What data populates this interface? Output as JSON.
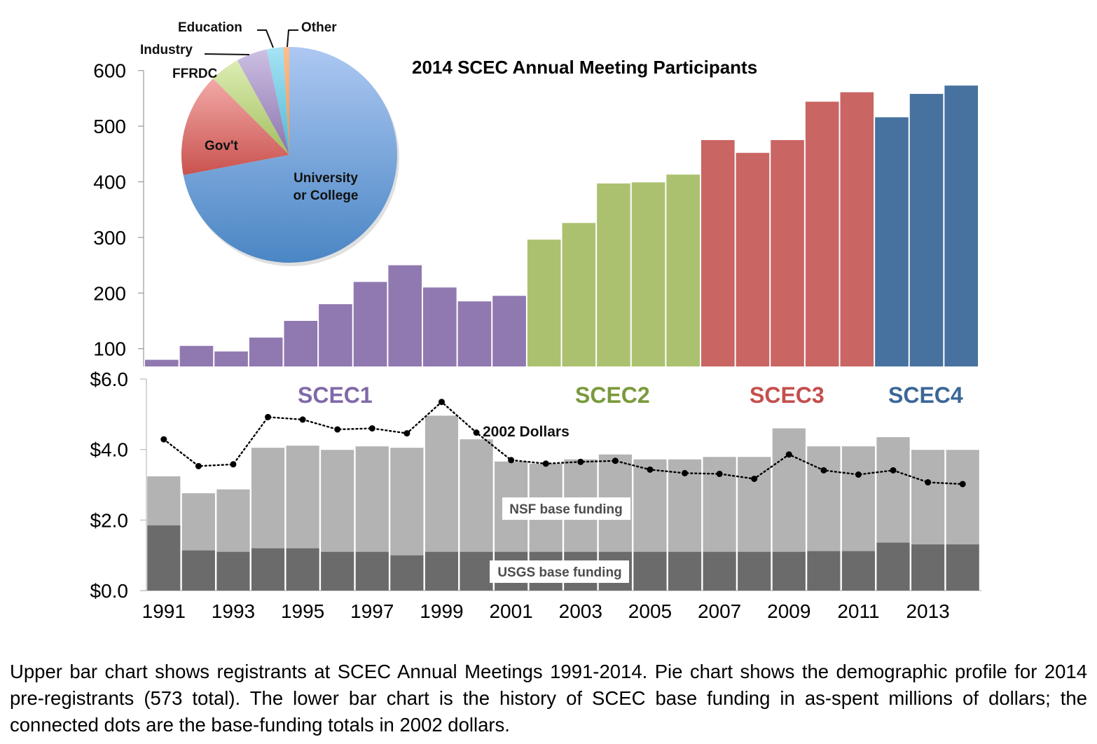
{
  "chart_data": [
    {
      "type": "bar",
      "title": "2014 SCEC Annual Meeting Participants",
      "xlabel": "",
      "ylabel": "",
      "ylim": [
        68,
        600
      ],
      "yticks": [
        100,
        200,
        300,
        400,
        500,
        600
      ],
      "grid": false,
      "categories": [
        "1991",
        "1992",
        "1993",
        "1994",
        "1995",
        "1996",
        "1997",
        "1998",
        "1999",
        "2000",
        "2001",
        "2002",
        "2003",
        "2004",
        "2005",
        "2006",
        "2007",
        "2008",
        "2009",
        "2010",
        "2011",
        "2012",
        "2013",
        "2014"
      ],
      "values": [
        80,
        105,
        95,
        120,
        150,
        180,
        220,
        250,
        210,
        185,
        195,
        296,
        326,
        397,
        399,
        413,
        475,
        452,
        475,
        544,
        561,
        516,
        558,
        573
      ],
      "eras": [
        {
          "name": "SCEC1",
          "start": "1991",
          "end": "2001",
          "color": "#9079b0"
        },
        {
          "name": "SCEC2",
          "start": "2002",
          "end": "2006",
          "color": "#acc16f"
        },
        {
          "name": "SCEC3",
          "start": "2007",
          "end": "2011",
          "color": "#c96563"
        },
        {
          "name": "SCEC4",
          "start": "2012",
          "end": "2014",
          "color": "#47729f"
        }
      ]
    },
    {
      "type": "pie",
      "title": "2014 SCEC Annual Meeting Participants",
      "subtitle": "Demographic profile of 2014 pre-registrants (573 total)",
      "slices": [
        {
          "label": "University or College",
          "value": 72,
          "color_top": "#adc8f2",
          "color_bottom": "#4a86c4"
        },
        {
          "label": "Gov't",
          "value": 15.5,
          "color_top": "#f2aaa8",
          "color_bottom": "#c9524e"
        },
        {
          "label": "FFRDC",
          "value": 4.5,
          "color_top": "#dcedb4",
          "color_bottom": "#a3bf5e"
        },
        {
          "label": "Industry",
          "value": 4.6,
          "color_top": "#cdbfe3",
          "color_bottom": "#8b74ad"
        },
        {
          "label": "Education",
          "value": 2.5,
          "color_top": "#a7e3f5",
          "color_bottom": "#4fb8d4"
        },
        {
          "label": "Other",
          "value": 0.9,
          "color_top": "#fbbf8e",
          "color_bottom": "#f1954f"
        }
      ]
    },
    {
      "type": "bar",
      "stacked": true,
      "xlabel": "",
      "ylabel": "",
      "ylim": [
        0,
        6
      ],
      "yticks": [
        "$0.0",
        "$2.0",
        "$4.0",
        "$6.0"
      ],
      "ytick_values": [
        0,
        2,
        4,
        6
      ],
      "xticks": [
        "1991",
        "1993",
        "1995",
        "1997",
        "1999",
        "2001",
        "2003",
        "2005",
        "2007",
        "2009",
        "2011",
        "2013"
      ],
      "grid": false,
      "categories": [
        "1991",
        "1992",
        "1993",
        "1994",
        "1995",
        "1996",
        "1997",
        "1998",
        "1999",
        "2000",
        "2001",
        "2002",
        "2003",
        "2004",
        "2005",
        "2006",
        "2007",
        "2008",
        "2009",
        "2010",
        "2011",
        "2012",
        "2013",
        "2014"
      ],
      "series": [
        {
          "name": "USGS base funding",
          "color": "#6b6b6b",
          "values": [
            1.85,
            1.14,
            1.1,
            1.2,
            1.2,
            1.1,
            1.1,
            1.0,
            1.1,
            1.1,
            1.1,
            1.1,
            1.1,
            1.1,
            1.1,
            1.1,
            1.1,
            1.1,
            1.1,
            1.12,
            1.12,
            1.36,
            1.31,
            1.31
          ]
        },
        {
          "name": "NSF base funding",
          "color": "#b3b3b3",
          "values": [
            1.39,
            1.62,
            1.77,
            2.85,
            2.91,
            2.89,
            2.99,
            3.05,
            3.86,
            3.19,
            2.56,
            2.5,
            2.62,
            2.76,
            2.62,
            2.62,
            2.69,
            2.69,
            3.5,
            2.97,
            2.97,
            2.99,
            2.68,
            2.68
          ]
        }
      ],
      "line_series": {
        "name": "2002 Dollars",
        "style": "dotted-with-markers",
        "color": "#000000",
        "values": [
          4.29,
          3.53,
          3.58,
          4.92,
          4.85,
          4.57,
          4.6,
          4.46,
          5.35,
          4.48,
          3.7,
          3.6,
          3.65,
          3.68,
          3.43,
          3.33,
          3.31,
          3.17,
          3.86,
          3.41,
          3.29,
          3.41,
          3.07,
          3.02
        ]
      },
      "annotations": [
        "SCEC1",
        "SCEC2",
        "SCEC3",
        "SCEC4",
        "2002 Dollars",
        "NSF base funding",
        "USGS base funding"
      ]
    }
  ],
  "labels": {
    "title": "2014 SCEC Annual Meeting Participants",
    "pie": {
      "education": "Education",
      "other": "Other",
      "industry": "Industry",
      "ffrdc": "FFRDC",
      "govt": "Gov't",
      "university_line1": "University",
      "university_line2": "or College"
    },
    "eras": [
      "SCEC1",
      "SCEC2",
      "SCEC3",
      "SCEC4"
    ],
    "dollars_label": "2002 Dollars",
    "nsf_label": "NSF base funding",
    "usgs_label": "USGS base funding"
  },
  "caption": "Upper bar chart shows registrants at SCEC Annual Meetings 1991-2014. Pie chart shows the demographic profile for 2014 pre-registrants (573 total). The lower bar chart is the history of SCEC base funding in as-spent millions of dollars; the connected dots are the base-funding totals in 2002 dollars."
}
